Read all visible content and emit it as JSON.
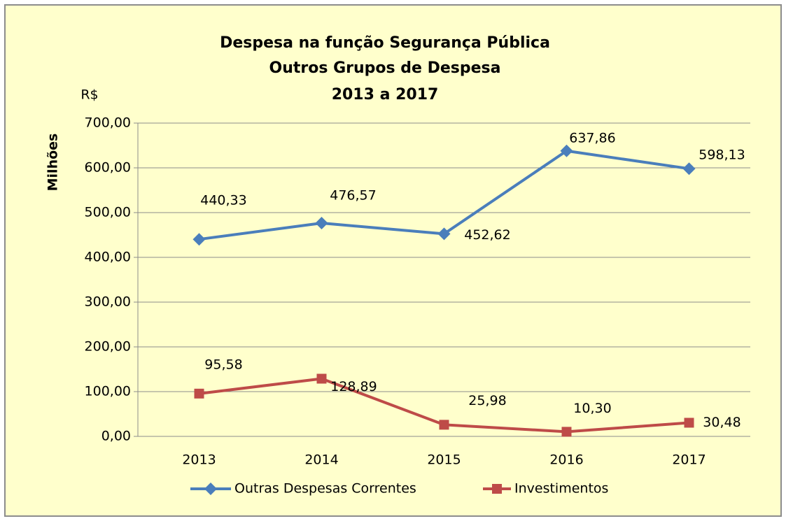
{
  "chart_data": {
    "type": "line",
    "title": [
      "Despesa na função Segurança Pública",
      "Outros Grupos de Despesa",
      "2013 a 2017"
    ],
    "unit_label": "R$",
    "y_label": "Milhões",
    "categories": [
      "2013",
      "2014",
      "2015",
      "2016",
      "2017"
    ],
    "series": [
      {
        "name": "Outras Despesas Correntes",
        "color": "#4a7ebb",
        "marker": "diamond",
        "values": [
          440.33,
          476.57,
          452.62,
          637.86,
          598.13
        ],
        "value_labels": [
          "440,33",
          "476,57",
          "452,62",
          "637,86",
          "598,13"
        ]
      },
      {
        "name": "Investimentos",
        "color": "#be4b48",
        "marker": "square",
        "values": [
          95.58,
          128.89,
          25.98,
          10.3,
          30.48
        ],
        "value_labels": [
          "95,58",
          "128,89",
          "25,98",
          "10,30",
          "30,48"
        ]
      }
    ],
    "ylim": [
      0,
      700
    ],
    "yticks": [
      {
        "value": 0,
        "label": "0,00"
      },
      {
        "value": 100,
        "label": "100,00"
      },
      {
        "value": 200,
        "label": "200,00"
      },
      {
        "value": 300,
        "label": "300,00"
      },
      {
        "value": 400,
        "label": "400,00"
      },
      {
        "value": 500,
        "label": "500,00"
      },
      {
        "value": 600,
        "label": "600,00"
      },
      {
        "value": 700,
        "label": "700,00"
      }
    ],
    "grid": true,
    "legend": "bottom"
  }
}
